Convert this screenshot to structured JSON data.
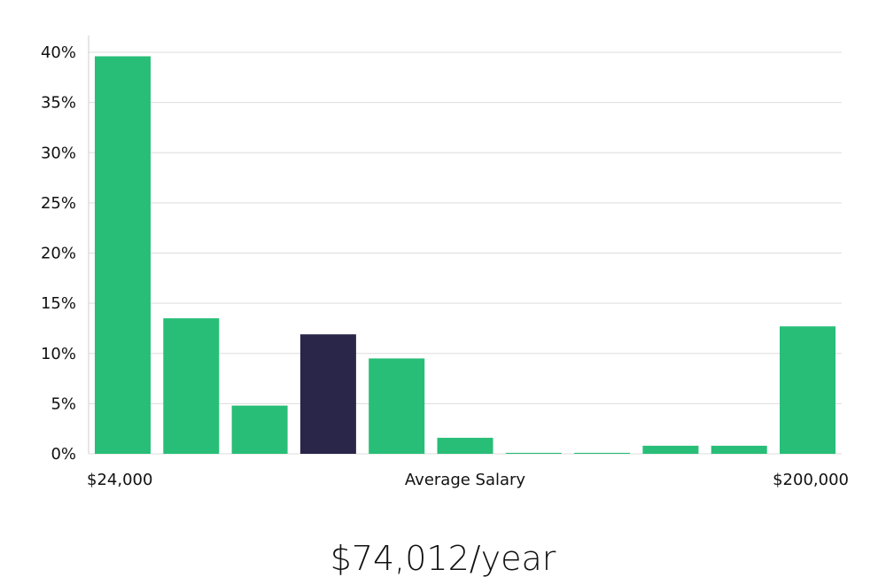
{
  "chart_data": {
    "type": "bar",
    "title": "",
    "xlabel": "Average Salary",
    "ylabel": "",
    "ylim": [
      0,
      40
    ],
    "y_ticks": [
      0,
      5,
      10,
      15,
      20,
      25,
      30,
      35,
      40
    ],
    "y_tick_labels": [
      "0%",
      "5%",
      "10%",
      "15%",
      "20%",
      "25%",
      "30%",
      "35%",
      "40%"
    ],
    "x_left_label": "$24,000",
    "x_right_label": "$200,000",
    "grid": true,
    "values": [
      39.6,
      13.5,
      4.8,
      11.9,
      9.5,
      1.6,
      0.1,
      0.1,
      0.8,
      0.8,
      12.7
    ],
    "highlight_index": 3,
    "colors": {
      "bar": "#28be78",
      "highlight": "#29264a",
      "grid": "#dddddd",
      "axis": "#cccccc"
    }
  },
  "summary": {
    "salary": "$74,012/year"
  }
}
